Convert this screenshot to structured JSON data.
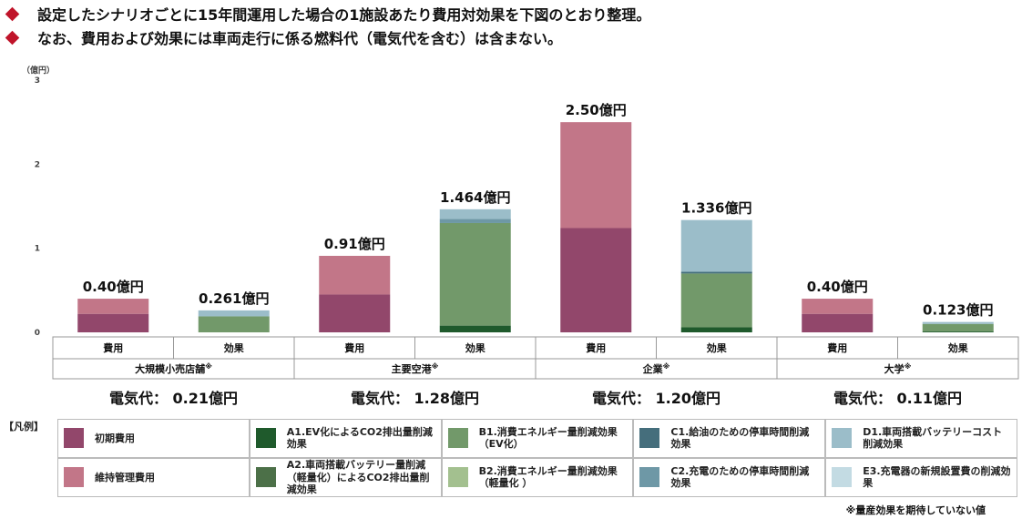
{
  "bullets": [
    "設定したシナリオごとに15年間運用した場合の1施設あたり費用対効果を下図のとおり整理。",
    "なお、費用および効果には車両走行に係る燃料代（電気代を含む）は含まない。"
  ],
  "chart_data": {
    "type": "bar",
    "stacked": true,
    "ylabel": "（億円）",
    "ylim": [
      0,
      3
    ],
    "yticks": [
      "0",
      "1",
      "2",
      "3"
    ],
    "grid": false,
    "groups": [
      {
        "name": "大規模小売店舗",
        "mark": "※",
        "electricity": "電気代： 0.21億円",
        "bars": [
          {
            "label": "費用",
            "total_label": "0.40億円",
            "segments": {
              "initial": 0.22,
              "maintenance": 0.18
            }
          },
          {
            "label": "効果",
            "total_label": "0.261億円",
            "segments": {
              "A1": 0.0,
              "A2": 0.0,
              "B1": 0.19,
              "B2": 0.0,
              "C1": 0.0,
              "C2": 0.0,
              "D1": 0.071,
              "E3": 0.0
            }
          }
        ]
      },
      {
        "name": "主要空港",
        "mark": "※",
        "electricity": "電気代： 1.28億円",
        "bars": [
          {
            "label": "費用",
            "total_label": "0.91億円",
            "segments": {
              "initial": 0.45,
              "maintenance": 0.46
            }
          },
          {
            "label": "効果",
            "total_label": "1.464億円",
            "segments": {
              "A1": 0.08,
              "A2": 0.0,
              "B1": 1.22,
              "B2": 0.0,
              "C1": 0.0,
              "C2": 0.05,
              "D1": 0.114,
              "E3": 0.0
            }
          }
        ]
      },
      {
        "name": "企業",
        "mark": "※",
        "electricity": "電気代： 1.20億円",
        "bars": [
          {
            "label": "費用",
            "total_label": "2.50億円",
            "segments": {
              "initial": 1.24,
              "maintenance": 1.26
            }
          },
          {
            "label": "効果",
            "total_label": "1.336億円",
            "segments": {
              "A1": 0.06,
              "A2": 0.0,
              "B1": 0.64,
              "B2": 0.0,
              "C1": 0.02,
              "C2": 0.0,
              "D1": 0.616,
              "E3": 0.0
            }
          }
        ]
      },
      {
        "name": "大学",
        "mark": "※",
        "electricity": "電気代： 0.11億円",
        "bars": [
          {
            "label": "費用",
            "total_label": "0.40億円",
            "segments": {
              "initial": 0.22,
              "maintenance": 0.18
            }
          },
          {
            "label": "効果",
            "total_label": "0.123億円",
            "segments": {
              "A1": 0.01,
              "A2": 0.0,
              "B1": 0.09,
              "B2": 0.0,
              "C1": 0.0,
              "C2": 0.0,
              "D1": 0.023,
              "E3": 0.0
            }
          }
        ]
      }
    ],
    "stack_order": [
      "initial",
      "maintenance",
      "A1",
      "A2",
      "B1",
      "B2",
      "C1",
      "C2",
      "D1",
      "E3"
    ],
    "colors": {
      "initial": "#92476b",
      "maintenance": "#c27688",
      "A1": "#1f5a2c",
      "A2": "#4c7048",
      "B1": "#72996a",
      "B2": "#a3c08f",
      "C1": "#456e7c",
      "C2": "#6e98a6",
      "D1": "#9bbdc9",
      "E3": "#c3dbe3"
    },
    "legend": [
      {
        "key": "initial",
        "label": "初期費用"
      },
      {
        "key": "A1",
        "label": "A1.EV化によるCO2排出量削減効果"
      },
      {
        "key": "B1",
        "label": "B1.消費エネルギー量削減効果（EV化）"
      },
      {
        "key": "C1",
        "label": "C1.給油のための停車時間削減効果"
      },
      {
        "key": "D1",
        "label": "D1.車両搭載バッテリーコスト削減効果"
      },
      {
        "key": "maintenance",
        "label": "維持管理費用"
      },
      {
        "key": "A2",
        "label": "A2.車両搭載バッテリー量削減（軽量化）によるCO2排出量削減効果"
      },
      {
        "key": "B2",
        "label": "B2.消費エネルギー量削減効果（軽量化 ）"
      },
      {
        "key": "C2",
        "label": "C2.充電のための停車時間削減効果"
      },
      {
        "key": "E3",
        "label": "E3.充電器の新規設置費の削減効果"
      }
    ],
    "legend_title": "【凡例】",
    "note": "※量産効果を期待していない値"
  }
}
